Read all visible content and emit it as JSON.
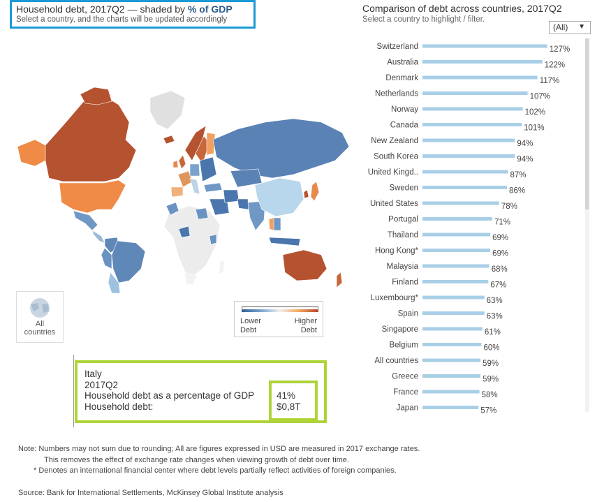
{
  "header": {
    "title_prefix": "Household debt, 2017Q2 — shaded by ",
    "title_emphasis": "% of GDP",
    "subtitle": "Select a country, and the charts will be updated accordingly"
  },
  "map": {
    "legend_low_line1": "Lower",
    "legend_low_line2": "Debt",
    "legend_high_line1": "Higher",
    "legend_high_line2": "Debt",
    "all_countries_line1": "All",
    "all_countries_line2": "countries",
    "colors": {
      "low": "#2f5f95",
      "mid": "#f0f0f0",
      "high": "#b5452d",
      "ocean": "#ffffff",
      "nodata": "#ececec"
    }
  },
  "tooltip": {
    "country": "Italy",
    "period": "2017Q2",
    "pct_label": "Household debt as a percentage of GDP",
    "pct_value": "41%",
    "debt_label": "Household debt:",
    "debt_value": "$0,8T"
  },
  "right_panel": {
    "title": "Comparison of debt across countries, 2017Q2",
    "subtitle": "Select a country to highlight / filter.",
    "dropdown_value": "(All)"
  },
  "chart_data": {
    "type": "bar",
    "orientation": "horizontal",
    "title": "Comparison of debt across countries, 2017Q2",
    "categories": [
      "Switzerland",
      "Australia",
      "Denmark",
      "Netherlands",
      "Norway",
      "Canada",
      "New Zealand",
      "South Korea",
      "United Kingd..",
      "Sweden",
      "United States",
      "Portugal",
      "Thailand",
      "Hong Kong*",
      "Malaysia",
      "Finland",
      "Luxembourg*",
      "Spain",
      "Singapore",
      "Belgium",
      "All countries",
      "Greece",
      "France",
      "Japan"
    ],
    "values": [
      127,
      122,
      117,
      107,
      102,
      101,
      94,
      94,
      87,
      86,
      78,
      71,
      69,
      69,
      68,
      67,
      63,
      63,
      61,
      60,
      59,
      59,
      58,
      57
    ],
    "labels": [
      "127%",
      "122%",
      "117%",
      "107%",
      "102%",
      "101%",
      "94%",
      "94%",
      "87%",
      "86%",
      "78%",
      "71%",
      "69%",
      "69%",
      "68%",
      "67%",
      "63%",
      "63%",
      "61%",
      "60%",
      "59%",
      "59%",
      "58%",
      "57%"
    ],
    "xlim": [
      0,
      130
    ],
    "bar_color": "#a9cfe7",
    "grid": false
  },
  "footer": {
    "note1": "Note: Numbers may not sum due to rounding;   All are figures expressed in USD are measured in 2017 exchange rates.",
    "note2": "This removes the effect of exchange rate changes when viewing growth of debt over time.",
    "note3": "* Denotes an international financial center where debt levels partially reflect activities of foreign companies.",
    "source": "Source: Bank for International Settlements, McKinsey Global Institute analysis"
  }
}
